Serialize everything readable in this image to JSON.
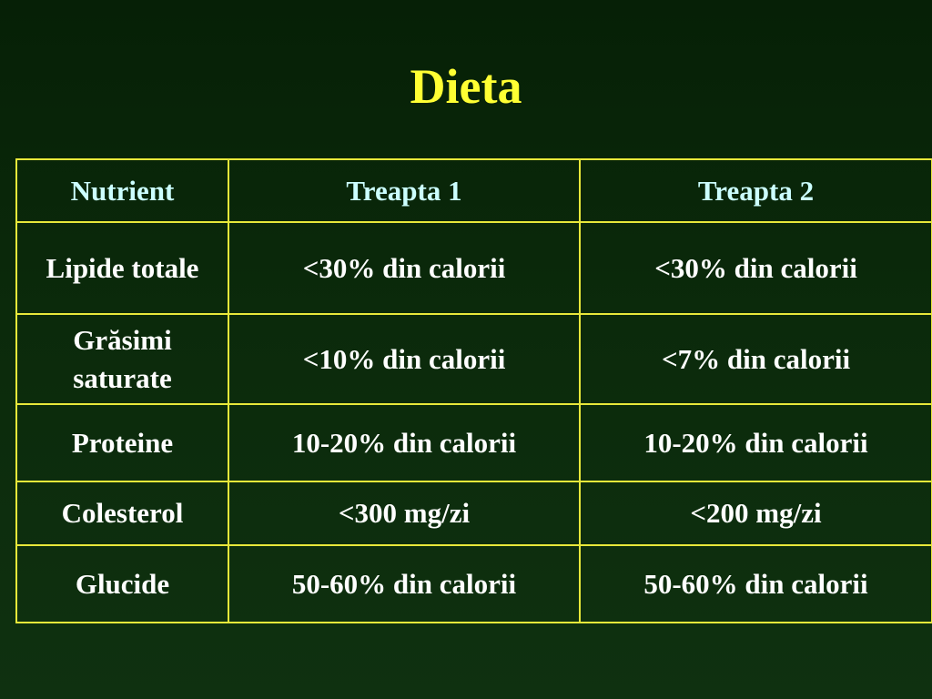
{
  "title": "Dieta",
  "table": {
    "headers": [
      "Nutrient",
      "Treapta 1",
      "Treapta 2"
    ],
    "rows": [
      [
        "Lipide totale",
        "<30% din calorii",
        "<30% din calorii"
      ],
      [
        "Grăsimi saturate",
        "<10% din calorii",
        "<7% din calorii"
      ],
      [
        "Proteine",
        "10-20% din calorii",
        "10-20% din calorii"
      ],
      [
        "Colesterol",
        "<300 mg/zi",
        "<200 mg/zi"
      ],
      [
        "Glucide",
        "50-60% din calorii",
        "50-60% din calorii"
      ]
    ]
  },
  "colors": {
    "background": "#0b2a0b",
    "title": "#ffff33",
    "header_text": "#ccffff",
    "cell_text": "#ffffff",
    "border": "#e8e83a"
  }
}
